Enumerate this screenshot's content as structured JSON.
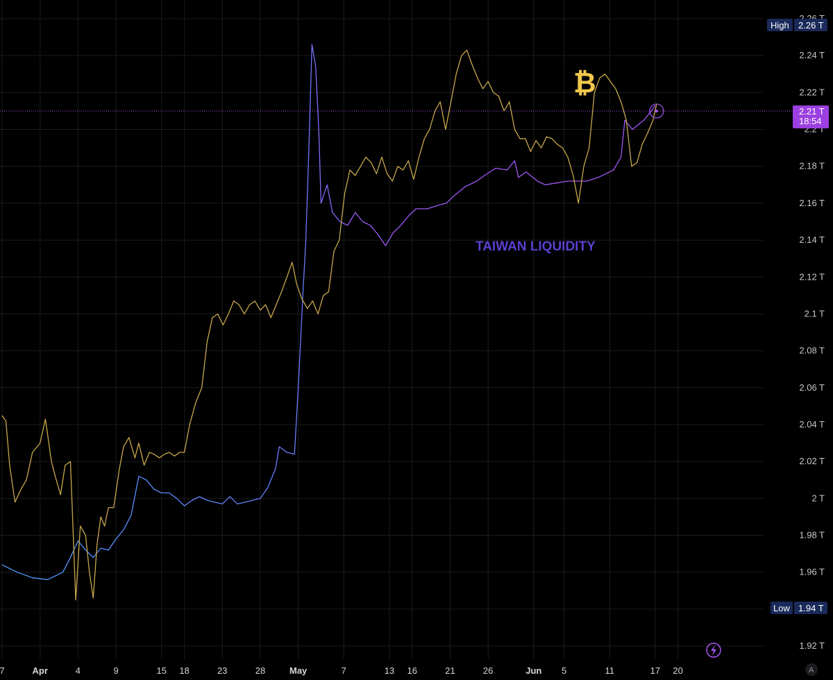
{
  "chart_data": {
    "type": "line",
    "title": "",
    "ylabel": "",
    "xlabel": "",
    "ylim": [
      1.91,
      2.26
    ],
    "y_ticks": [
      "2.26 T",
      "2.24 T",
      "2.22 T",
      "2.2 T",
      "2.18 T",
      "2.16 T",
      "2.14 T",
      "2.12 T",
      "2.1 T",
      "2.08 T",
      "2.06 T",
      "2.04 T",
      "2.02 T",
      "2 T",
      "1.98 T",
      "1.96 T",
      "1.94 T",
      "1.92 T"
    ],
    "y_tick_values": [
      2.26,
      2.24,
      2.22,
      2.2,
      2.18,
      2.16,
      2.14,
      2.12,
      2.1,
      2.08,
      2.06,
      2.04,
      2.02,
      2.0,
      1.98,
      1.96,
      1.94,
      1.92
    ],
    "x_ticks": [
      {
        "label": "7",
        "day": -25,
        "bold": false
      },
      {
        "label": "Apr",
        "day": -20,
        "bold": true
      },
      {
        "label": "4",
        "day": -15,
        "bold": false
      },
      {
        "label": "9",
        "day": -10,
        "bold": false
      },
      {
        "label": "15",
        "day": -4,
        "bold": false
      },
      {
        "label": "18",
        "day": -1,
        "bold": false
      },
      {
        "label": "23",
        "day": 4,
        "bold": false
      },
      {
        "label": "28",
        "day": 9,
        "bold": false
      },
      {
        "label": "May",
        "day": 14,
        "bold": true
      },
      {
        "label": "7",
        "day": 20,
        "bold": false
      },
      {
        "label": "13",
        "day": 26,
        "bold": false
      },
      {
        "label": "16",
        "day": 29,
        "bold": false
      },
      {
        "label": "21",
        "day": 34,
        "bold": false
      },
      {
        "label": "26",
        "day": 39,
        "bold": false
      },
      {
        "label": "Jun",
        "day": 45,
        "bold": true
      },
      {
        "label": "5",
        "day": 49,
        "bold": false
      },
      {
        "label": "11",
        "day": 55,
        "bold": false
      },
      {
        "label": "17",
        "day": 61,
        "bold": false
      },
      {
        "label": "20",
        "day": 64,
        "bold": false
      }
    ],
    "xlim_day": [
      -25,
      71
    ],
    "grid": true,
    "series": [
      {
        "name": "TAIWAN LIQUIDITY",
        "color_start": "#4d9fff",
        "color_end": "#a855f7",
        "points": [
          [
            -25,
            1.964
          ],
          [
            -23,
            1.96
          ],
          [
            -21,
            1.957
          ],
          [
            -19,
            1.956
          ],
          [
            -17,
            1.96
          ],
          [
            -16,
            1.968
          ],
          [
            -15,
            1.977
          ],
          [
            -14,
            1.972
          ],
          [
            -13,
            1.968
          ],
          [
            -12,
            1.973
          ],
          [
            -11,
            1.972
          ],
          [
            -10,
            1.978
          ],
          [
            -9,
            1.983
          ],
          [
            -8,
            1.991
          ],
          [
            -7,
            2.012
          ],
          [
            -6,
            2.01
          ],
          [
            -5,
            2.005
          ],
          [
            -4,
            2.003
          ],
          [
            -3,
            2.003
          ],
          [
            -2,
            2.0
          ],
          [
            -1,
            1.996
          ],
          [
            0,
            1.999
          ],
          [
            1,
            2.001
          ],
          [
            2,
            1.999
          ],
          [
            3,
            1.998
          ],
          [
            4,
            1.997
          ],
          [
            5,
            2.001
          ],
          [
            6,
            1.997
          ],
          [
            7,
            1.998
          ],
          [
            8,
            1.999
          ],
          [
            9,
            2.0
          ],
          [
            10,
            2.006
          ],
          [
            11,
            2.016
          ],
          [
            11.5,
            2.028
          ],
          [
            12.5,
            2.025
          ],
          [
            13.5,
            2.024
          ],
          [
            14,
            2.06
          ],
          [
            14.6,
            2.11
          ],
          [
            15,
            2.14
          ],
          [
            15.4,
            2.19
          ],
          [
            15.8,
            2.246
          ],
          [
            16.3,
            2.234
          ],
          [
            16.7,
            2.2
          ],
          [
            17,
            2.16
          ],
          [
            17.8,
            2.17
          ],
          [
            18.5,
            2.155
          ],
          [
            19.5,
            2.15
          ],
          [
            20.5,
            2.148
          ],
          [
            21.5,
            2.155
          ],
          [
            22.5,
            2.15
          ],
          [
            23.5,
            2.148
          ],
          [
            24.5,
            2.143
          ],
          [
            25.5,
            2.137
          ],
          [
            26.5,
            2.144
          ],
          [
            27.5,
            2.148
          ],
          [
            28.5,
            2.153
          ],
          [
            29.5,
            2.157
          ],
          [
            31,
            2.157
          ],
          [
            32.5,
            2.159
          ],
          [
            33.5,
            2.16
          ],
          [
            34.5,
            2.164
          ],
          [
            36,
            2.169
          ],
          [
            37.5,
            2.172
          ],
          [
            38.5,
            2.175
          ],
          [
            40,
            2.179
          ],
          [
            41.5,
            2.178
          ],
          [
            42.5,
            2.183
          ],
          [
            43,
            2.174
          ],
          [
            44,
            2.177
          ],
          [
            45.5,
            2.172
          ],
          [
            46.5,
            2.17
          ],
          [
            48,
            2.171
          ],
          [
            49.5,
            2.172
          ],
          [
            51,
            2.172
          ],
          [
            52,
            2.172
          ],
          [
            53.5,
            2.174
          ],
          [
            54.5,
            2.176
          ],
          [
            55.5,
            2.178
          ],
          [
            56.5,
            2.185
          ],
          [
            57,
            2.205
          ],
          [
            58,
            2.2
          ],
          [
            59.5,
            2.205
          ],
          [
            60.5,
            2.21
          ],
          [
            61,
            2.213
          ]
        ]
      },
      {
        "name": "BTC",
        "color": "#c9a94c",
        "points": [
          [
            -25,
            2.045
          ],
          [
            -24.5,
            2.042
          ],
          [
            -24,
            2.018
          ],
          [
            -23.3,
            1.998
          ],
          [
            -22.5,
            2.005
          ],
          [
            -21.8,
            2.01
          ],
          [
            -21,
            2.025
          ],
          [
            -20,
            2.03
          ],
          [
            -19.3,
            2.043
          ],
          [
            -18.5,
            2.02
          ],
          [
            -18,
            2.012
          ],
          [
            -17.3,
            2.002
          ],
          [
            -16.7,
            2.018
          ],
          [
            -16,
            2.02
          ],
          [
            -15.3,
            1.945
          ],
          [
            -14.7,
            1.985
          ],
          [
            -14,
            1.98
          ],
          [
            -13.5,
            1.96
          ],
          [
            -13,
            1.946
          ],
          [
            -12.5,
            1.975
          ],
          [
            -12,
            1.99
          ],
          [
            -11.5,
            1.985
          ],
          [
            -11,
            1.995
          ],
          [
            -10.3,
            1.995
          ],
          [
            -9.6,
            2.015
          ],
          [
            -9,
            2.028
          ],
          [
            -8.3,
            2.033
          ],
          [
            -7.5,
            2.022
          ],
          [
            -7,
            2.03
          ],
          [
            -6.3,
            2.018
          ],
          [
            -5.6,
            2.025
          ],
          [
            -5,
            2.024
          ],
          [
            -4.3,
            2.022
          ],
          [
            -3.6,
            2.024
          ],
          [
            -3,
            2.025
          ],
          [
            -2.3,
            2.023
          ],
          [
            -1.6,
            2.025
          ],
          [
            -1,
            2.025
          ],
          [
            -0.3,
            2.04
          ],
          [
            0.5,
            2.052
          ],
          [
            1.3,
            2.06
          ],
          [
            2,
            2.085
          ],
          [
            2.7,
            2.098
          ],
          [
            3.4,
            2.1
          ],
          [
            4.1,
            2.094
          ],
          [
            4.8,
            2.1
          ],
          [
            5.5,
            2.107
          ],
          [
            6.2,
            2.105
          ],
          [
            6.9,
            2.1
          ],
          [
            7.6,
            2.105
          ],
          [
            8.3,
            2.107
          ],
          [
            9,
            2.102
          ],
          [
            9.7,
            2.105
          ],
          [
            10.4,
            2.098
          ],
          [
            11.1,
            2.105
          ],
          [
            11.8,
            2.112
          ],
          [
            12.5,
            2.12
          ],
          [
            13.2,
            2.128
          ],
          [
            13.8,
            2.116
          ],
          [
            14.5,
            2.108
          ],
          [
            15.2,
            2.103
          ],
          [
            15.9,
            2.107
          ],
          [
            16.6,
            2.1
          ],
          [
            17.3,
            2.11
          ],
          [
            18,
            2.112
          ],
          [
            18.7,
            2.134
          ],
          [
            19.4,
            2.14
          ],
          [
            20.1,
            2.165
          ],
          [
            20.8,
            2.178
          ],
          [
            21.5,
            2.175
          ],
          [
            22.2,
            2.18
          ],
          [
            22.9,
            2.185
          ],
          [
            23.6,
            2.182
          ],
          [
            24.3,
            2.176
          ],
          [
            25,
            2.185
          ],
          [
            25.7,
            2.176
          ],
          [
            26.4,
            2.172
          ],
          [
            27.1,
            2.18
          ],
          [
            27.8,
            2.178
          ],
          [
            28.5,
            2.183
          ],
          [
            29.2,
            2.173
          ],
          [
            29.9,
            2.185
          ],
          [
            30.6,
            2.195
          ],
          [
            31.3,
            2.2
          ],
          [
            32,
            2.21
          ],
          [
            32.7,
            2.215
          ],
          [
            33.4,
            2.2
          ],
          [
            34.1,
            2.215
          ],
          [
            34.8,
            2.23
          ],
          [
            35.5,
            2.24
          ],
          [
            36.2,
            2.243
          ],
          [
            36.9,
            2.235
          ],
          [
            37.6,
            2.228
          ],
          [
            38.3,
            2.222
          ],
          [
            39,
            2.226
          ],
          [
            39.7,
            2.22
          ],
          [
            40.4,
            2.218
          ],
          [
            41.1,
            2.21
          ],
          [
            41.8,
            2.215
          ],
          [
            42.5,
            2.2
          ],
          [
            43.2,
            2.195
          ],
          [
            43.9,
            2.195
          ],
          [
            44.6,
            2.188
          ],
          [
            45.3,
            2.194
          ],
          [
            46,
            2.19
          ],
          [
            46.7,
            2.196
          ],
          [
            47.4,
            2.195
          ],
          [
            48.1,
            2.192
          ],
          [
            48.8,
            2.19
          ],
          [
            49.5,
            2.185
          ],
          [
            50.2,
            2.175
          ],
          [
            50.9,
            2.16
          ],
          [
            51.6,
            2.18
          ],
          [
            52.3,
            2.19
          ],
          [
            53,
            2.22
          ],
          [
            53.7,
            2.228
          ],
          [
            54.4,
            2.23
          ],
          [
            55.1,
            2.226
          ],
          [
            55.8,
            2.222
          ],
          [
            56.5,
            2.215
          ],
          [
            57.2,
            2.205
          ],
          [
            57.9,
            2.18
          ],
          [
            58.6,
            2.182
          ],
          [
            59.3,
            2.192
          ],
          [
            60,
            2.198
          ],
          [
            60.7,
            2.205
          ],
          [
            61.2,
            2.214
          ]
        ]
      }
    ],
    "annotations": {
      "liquidity_label": "TAIWAN LIQUIDITY",
      "btc_symbol": "₿"
    },
    "high_badge": {
      "label": "High",
      "value": "2.26 T"
    },
    "low_badge": {
      "label": "Low",
      "value": "1.94 T"
    },
    "last_price": {
      "value": "2.21 T",
      "countdown": "18:54",
      "level": 2.21
    }
  },
  "colors": {
    "background": "#000000",
    "grid": "#1c1c1e",
    "liquidity_blue": "#4d9fff",
    "liquidity_purple": "#a855f7",
    "btc_gold": "#c9a94c",
    "badge_navy": "#1a2a5a",
    "badge_purple": "#9b3fe0"
  },
  "icons": {
    "bottom_right": "lightning-icon",
    "corner": "auto-scale-icon",
    "corner_label": "A"
  }
}
